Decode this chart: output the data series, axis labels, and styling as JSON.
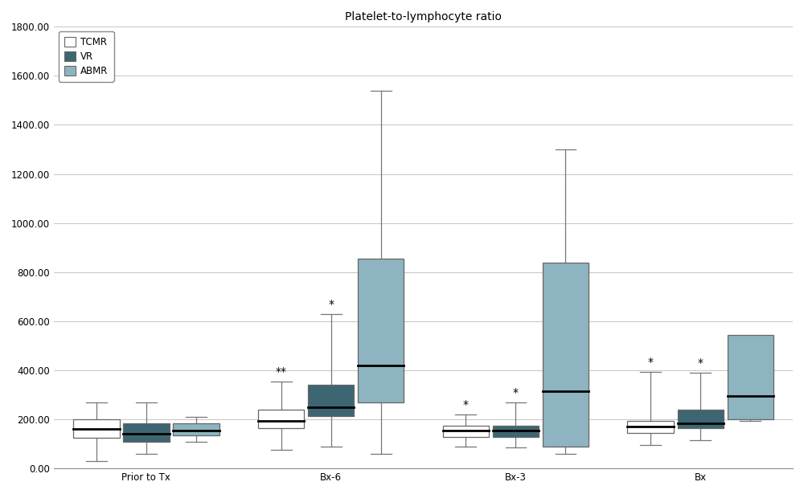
{
  "title": "Platelet-to-lymphocyte ratio",
  "groups": [
    "Prior to Tx",
    "Bx-6",
    "Bx-3",
    "Bx"
  ],
  "series_labels": [
    "TCMR",
    "VR",
    "ABMR"
  ],
  "colors": {
    "TCMR": "#ffffff",
    "VR": "#3d6672",
    "ABMR": "#8db4c0"
  },
  "edge_color": "#666666",
  "median_color": "#000000",
  "whisker_color": "#777777",
  "ylim": [
    0,
    1800
  ],
  "yticks": [
    0,
    200,
    400,
    600,
    800,
    1000,
    1200,
    1400,
    1600,
    1800
  ],
  "ytick_labels": [
    "0.00",
    "200.00",
    "400.00",
    "600.00",
    "800.00",
    "1000.00",
    "1200.00",
    "1400.00",
    "1600.00",
    "1800.00"
  ],
  "box_width": 0.25,
  "offsets": [
    -0.27,
    0.0,
    0.27
  ],
  "boxes": {
    "Prior to Tx": {
      "TCMR": {
        "q1": 125,
        "median": 160,
        "q3": 200,
        "whisker_lo": 30,
        "whisker_hi": 270
      },
      "VR": {
        "q1": 110,
        "median": 140,
        "q3": 185,
        "whisker_lo": 60,
        "whisker_hi": 270
      },
      "ABMR": {
        "q1": 135,
        "median": 155,
        "q3": 185,
        "whisker_lo": 110,
        "whisker_hi": 210
      }
    },
    "Bx-6": {
      "TCMR": {
        "q1": 165,
        "median": 195,
        "q3": 240,
        "whisker_lo": 75,
        "whisker_hi": 355,
        "annotation": "**"
      },
      "VR": {
        "q1": 215,
        "median": 250,
        "q3": 340,
        "whisker_lo": 90,
        "whisker_hi": 630,
        "annotation": "*"
      },
      "ABMR": {
        "q1": 270,
        "median": 420,
        "q3": 855,
        "whisker_lo": 60,
        "whisker_hi": 1540
      }
    },
    "Bx-3": {
      "TCMR": {
        "q1": 130,
        "median": 155,
        "q3": 175,
        "whisker_lo": 90,
        "whisker_hi": 220,
        "annotation": "*"
      },
      "VR": {
        "q1": 130,
        "median": 155,
        "q3": 175,
        "whisker_lo": 85,
        "whisker_hi": 270,
        "annotation": "*"
      },
      "ABMR": {
        "q1": 90,
        "median": 315,
        "q3": 840,
        "whisker_lo": 60,
        "whisker_hi": 1300
      }
    },
    "Bx": {
      "TCMR": {
        "q1": 145,
        "median": 170,
        "q3": 195,
        "whisker_lo": 95,
        "whisker_hi": 395,
        "annotation": "*"
      },
      "VR": {
        "q1": 165,
        "median": 185,
        "q3": 240,
        "whisker_lo": 115,
        "whisker_hi": 390,
        "annotation": "*"
      },
      "ABMR": {
        "q1": 200,
        "median": 295,
        "q3": 545,
        "whisker_lo": 195,
        "whisker_hi": 390
      }
    }
  },
  "background_color": "#ffffff",
  "plot_bg_color": "#ffffff",
  "grid_color": "#bbbbbb",
  "annotation_fontsize": 10,
  "title_fontsize": 10,
  "tick_fontsize": 8.5,
  "legend_fontsize": 8.5
}
